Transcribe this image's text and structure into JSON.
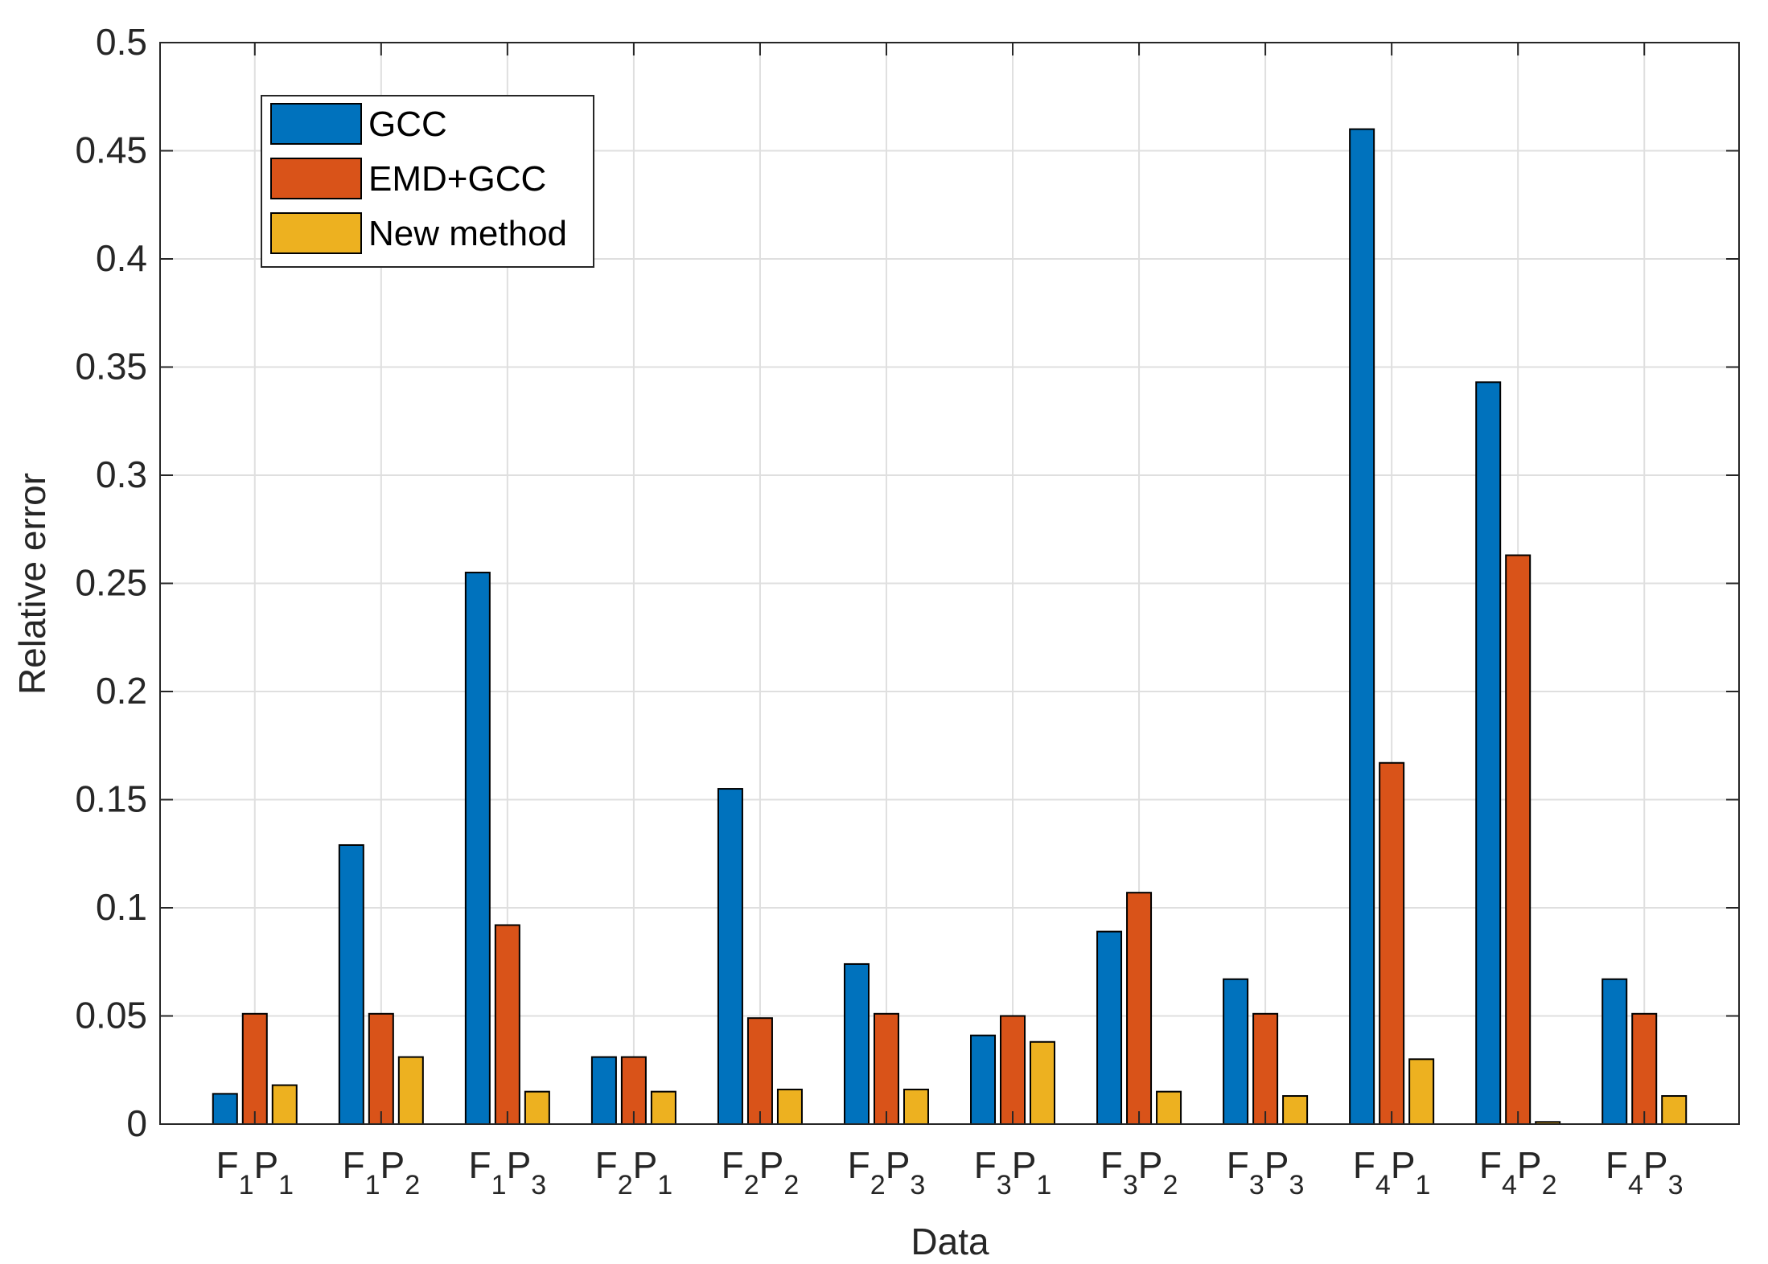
{
  "chart_data": {
    "type": "bar",
    "categories": [
      {
        "f": "1",
        "p": "1"
      },
      {
        "f": "1",
        "p": "2"
      },
      {
        "f": "1",
        "p": "3"
      },
      {
        "f": "2",
        "p": "1"
      },
      {
        "f": "2",
        "p": "2"
      },
      {
        "f": "2",
        "p": "3"
      },
      {
        "f": "3",
        "p": "1"
      },
      {
        "f": "3",
        "p": "2"
      },
      {
        "f": "3",
        "p": "3"
      },
      {
        "f": "4",
        "p": "1"
      },
      {
        "f": "4",
        "p": "2"
      },
      {
        "f": "4",
        "p": "3"
      }
    ],
    "series": [
      {
        "name": "GCC",
        "color": "#0072BD",
        "values": [
          0.014,
          0.129,
          0.255,
          0.031,
          0.155,
          0.074,
          0.041,
          0.089,
          0.067,
          0.46,
          0.343,
          0.067
        ]
      },
      {
        "name": "EMD+GCC",
        "color": "#D95319",
        "values": [
          0.051,
          0.051,
          0.092,
          0.031,
          0.049,
          0.051,
          0.05,
          0.107,
          0.051,
          0.167,
          0.263,
          0.051
        ]
      },
      {
        "name": "New method",
        "color": "#EDB120",
        "values": [
          0.018,
          0.031,
          0.015,
          0.015,
          0.016,
          0.016,
          0.038,
          0.015,
          0.013,
          0.03,
          0.001,
          0.013
        ]
      }
    ],
    "xlabel": "Data",
    "ylabel": "Relative error",
    "ylim": [
      0,
      0.5
    ],
    "yticks": [
      0,
      0.05,
      0.1,
      0.15,
      0.2,
      0.25,
      0.3,
      0.35,
      0.4,
      0.45,
      0.5
    ],
    "ytick_labels": [
      "0",
      "0.05",
      "0.1",
      "0.15",
      "0.2",
      "0.25",
      "0.3",
      "0.35",
      "0.4",
      "0.45",
      "0.5"
    ],
    "tick_prefix_f": "F",
    "tick_prefix_p": "P",
    "grid": true,
    "legend_position": "top-left"
  }
}
